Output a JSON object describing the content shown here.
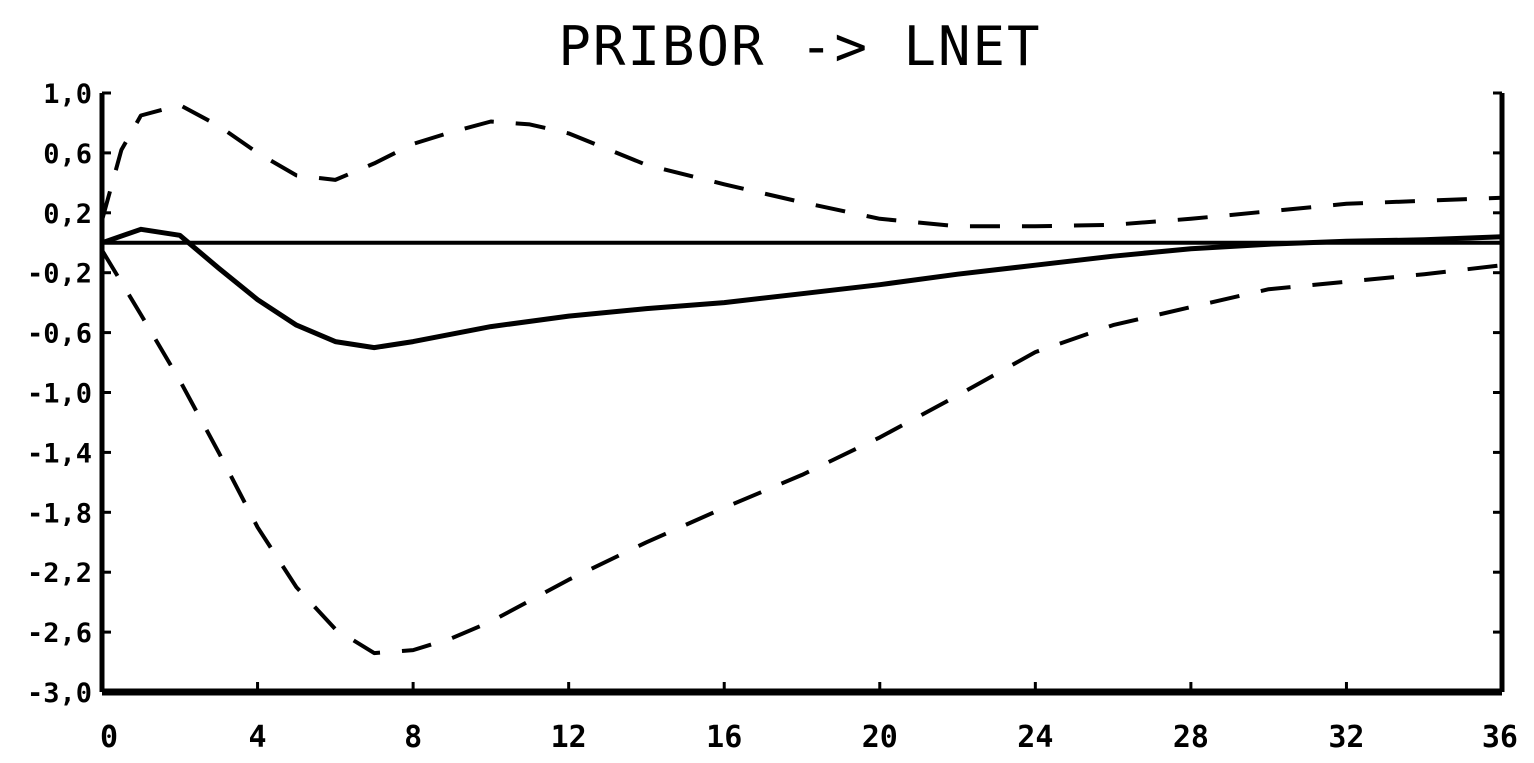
{
  "chart_data": {
    "type": "line",
    "title": "PRIBOR -> LNET",
    "xlabel": "",
    "ylabel": "",
    "xlim": [
      0,
      36
    ],
    "ylim": [
      -3.0,
      1.0
    ],
    "x_ticks": [
      0,
      4,
      8,
      12,
      16,
      20,
      24,
      28,
      32,
      36
    ],
    "x_tick_labels": [
      "0",
      "4",
      "8",
      "12",
      "16",
      "20",
      "24",
      "28",
      "32",
      "36"
    ],
    "y_ticks": [
      1.0,
      0.6,
      0.2,
      -0.2,
      -0.6,
      -1.0,
      -1.4,
      -1.8,
      -2.2,
      -2.6,
      -3.0
    ],
    "y_tick_labels": [
      "1,0",
      "0,6",
      "0,2",
      "-0,2",
      "-0,6",
      "-1,0",
      "-1,4",
      "-1,8",
      "-2,2",
      "-2,6",
      "-3,0"
    ],
    "grid": false,
    "legend": "none",
    "reference_line_y": 0,
    "series": [
      {
        "style": "solid",
        "x": [
          0,
          1,
          2,
          3,
          4,
          5,
          6,
          7,
          8,
          10,
          12,
          14,
          16,
          18,
          20,
          22,
          24,
          26,
          28,
          30,
          32,
          34,
          36
        ],
        "y": [
          0.0,
          0.09,
          0.05,
          -0.17,
          -0.38,
          -0.55,
          -0.66,
          -0.7,
          -0.66,
          -0.56,
          -0.49,
          -0.44,
          -0.4,
          -0.34,
          -0.28,
          -0.21,
          -0.15,
          -0.09,
          -0.04,
          -0.01,
          0.01,
          0.02,
          0.04
        ]
      },
      {
        "style": "dashed",
        "x": [
          0,
          0.5,
          1,
          2,
          3,
          4,
          5,
          6,
          7,
          8,
          9,
          10,
          11,
          12,
          14,
          16,
          18,
          20,
          22,
          24,
          26,
          28,
          30,
          32,
          34,
          36
        ],
        "y": [
          0.15,
          0.62,
          0.85,
          0.92,
          0.78,
          0.6,
          0.45,
          0.42,
          0.53,
          0.66,
          0.74,
          0.81,
          0.79,
          0.73,
          0.52,
          0.39,
          0.27,
          0.16,
          0.11,
          0.11,
          0.12,
          0.16,
          0.21,
          0.26,
          0.28,
          0.3
        ]
      },
      {
        "style": "dashed",
        "x": [
          0,
          1,
          2,
          3,
          4,
          5,
          6,
          7,
          8,
          9,
          10,
          12,
          14,
          16,
          18,
          20,
          22,
          24,
          26,
          28,
          30,
          32,
          34,
          36
        ],
        "y": [
          -0.05,
          -0.48,
          -0.92,
          -1.4,
          -1.9,
          -2.3,
          -2.58,
          -2.74,
          -2.72,
          -2.64,
          -2.53,
          -2.25,
          -2.0,
          -1.77,
          -1.55,
          -1.3,
          -1.02,
          -0.73,
          -0.55,
          -0.43,
          -0.31,
          -0.26,
          -0.21,
          -0.15
        ]
      }
    ]
  }
}
